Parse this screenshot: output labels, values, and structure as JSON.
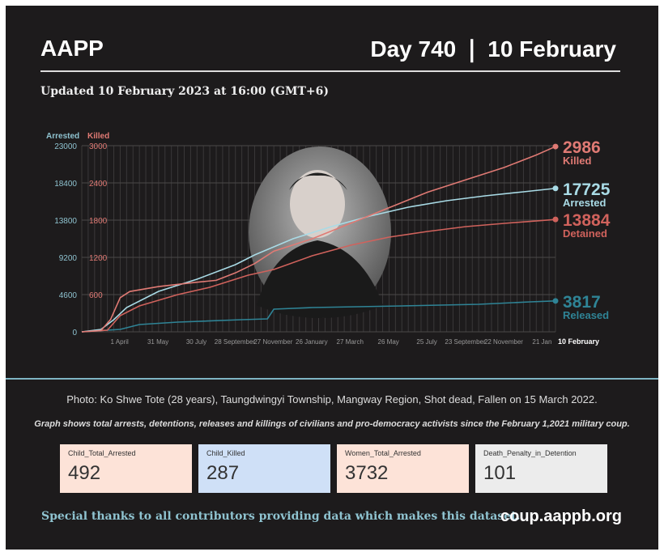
{
  "header": {
    "brand": "AAPP",
    "day": "Day 740 ❘ 10 February",
    "updated": "Updated 10 February 2023 at 16:00 (GMT+6)"
  },
  "chart_data": {
    "type": "line",
    "left_axis_label": "Arrested",
    "right_axis_label": "Killed",
    "left_ticks": [
      "0",
      "4600",
      "9200",
      "13800",
      "18400",
      "23000"
    ],
    "right_ticks": [
      "600",
      "1200",
      "1800",
      "2400",
      "3000"
    ],
    "left_ylim": [
      0,
      23000
    ],
    "right_ylim": [
      0,
      3000
    ],
    "xlim_days": [
      0,
      740
    ],
    "x_ticks": [
      {
        "label": "1 April",
        "day": 59
      },
      {
        "label": "31 May",
        "day": 119
      },
      {
        "label": "30 July",
        "day": 179
      },
      {
        "label": "28 September",
        "day": 239
      },
      {
        "label": "27 November",
        "day": 299
      },
      {
        "label": "26 January",
        "day": 359
      },
      {
        "label": "27 March",
        "day": 419
      },
      {
        "label": "26 May",
        "day": 479
      },
      {
        "label": "25 July",
        "day": 539
      },
      {
        "label": "23 September",
        "day": 599
      },
      {
        "label": "22 November",
        "day": 659
      },
      {
        "label": "21 Jan",
        "day": 719
      }
    ],
    "x_end_label": "10 February",
    "series": [
      {
        "name": "Killed",
        "axis": "right",
        "color": "#e07a74",
        "end_value": "2986",
        "x": [
          0,
          30,
          45,
          60,
          75,
          120,
          180,
          210,
          240,
          270,
          300,
          360,
          420,
          480,
          540,
          600,
          660,
          710,
          740
        ],
        "values": [
          0,
          20,
          200,
          550,
          650,
          730,
          800,
          830,
          950,
          1100,
          1300,
          1500,
          1750,
          2000,
          2250,
          2450,
          2650,
          2850,
          2986
        ]
      },
      {
        "name": "Arrested",
        "axis": "left",
        "color": "#a9dbe6",
        "end_value": "17725",
        "x": [
          0,
          30,
          50,
          70,
          120,
          180,
          240,
          270,
          330,
          390,
          450,
          510,
          570,
          630,
          690,
          740
        ],
        "values": [
          0,
          300,
          1500,
          3000,
          5000,
          6500,
          8300,
          9500,
          11500,
          13000,
          14300,
          15400,
          16200,
          16800,
          17300,
          17725
        ]
      },
      {
        "name": "Detained",
        "axis": "left",
        "color": "#d0625c",
        "end_value": "13884",
        "x": [
          0,
          40,
          60,
          90,
          150,
          200,
          260,
          300,
          360,
          420,
          480,
          540,
          600,
          660,
          740
        ],
        "values": [
          0,
          200,
          2000,
          3200,
          4600,
          5500,
          7000,
          7700,
          9400,
          10700,
          11700,
          12400,
          13000,
          13400,
          13884
        ]
      },
      {
        "name": "Released",
        "axis": "left",
        "color": "#2f8496",
        "end_value": "3817",
        "x": [
          0,
          60,
          90,
          150,
          250,
          290,
          300,
          360,
          500,
          620,
          700,
          740
        ],
        "values": [
          0,
          300,
          900,
          1200,
          1500,
          1600,
          2800,
          3000,
          3200,
          3400,
          3700,
          3817
        ]
      }
    ]
  },
  "caption": "Photo: Ko Shwe Tote (28 years),  Taungdwingyi Township, Mangway Region, Shot dead, Fallen on 15 March 2022.",
  "note": "Graph shows total arrests, detentions, releases and killings of civilians and pro-democracy activists since the February 1,2021 military coup.",
  "cards": [
    {
      "label": "Child_Total_Arrested",
      "value": "492",
      "color": "#fde3d8"
    },
    {
      "label": "Child_Killed",
      "value": "287",
      "color": "#cfe0f7"
    },
    {
      "label": "Women_Total_Arrested",
      "value": "3732",
      "color": "#fde3d8"
    },
    {
      "label": "Death_Penalty_in_Detention",
      "value": "101",
      "color": "#ececec"
    }
  ],
  "footer": {
    "thanks": "Special thanks to all contributors providing data which makes this dataset.",
    "site": "coup.aappb.org"
  }
}
